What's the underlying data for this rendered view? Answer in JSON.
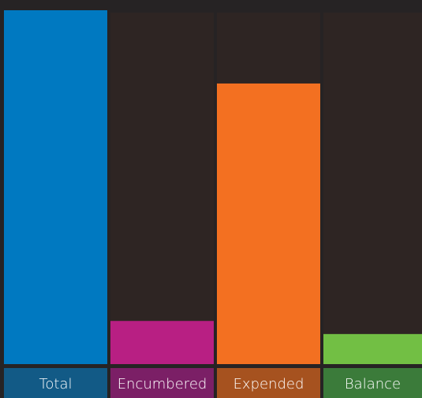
{
  "chart_data": {
    "type": "bar",
    "categories": [
      "Total",
      "Encumbered",
      "Expended",
      "Balance"
    ],
    "values": [
      100,
      12.2,
      79.3,
      8.5
    ],
    "colors": [
      "#0079c1",
      "#b81f83",
      "#f37021",
      "#72bf44"
    ],
    "label_colors": [
      "#125a86",
      "#7b1f66",
      "#a6521f",
      "#3b7b3a"
    ]
  }
}
